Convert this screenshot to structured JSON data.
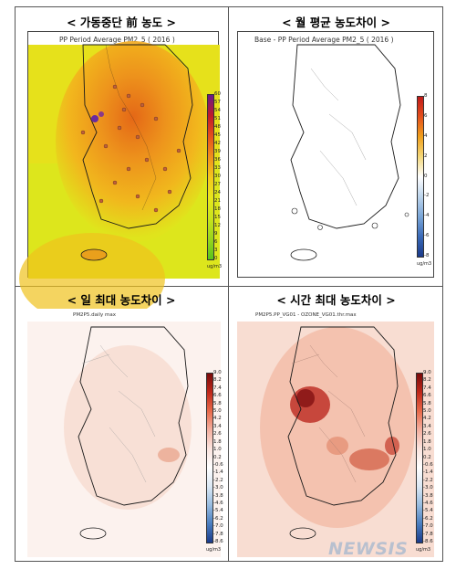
{
  "panels": [
    {
      "title": "< 가동중단 前 농도 >",
      "subtitle": "PP Period Average PM2_5 ( 2016 )",
      "corner": "",
      "ticks": [
        "60",
        "57",
        "54",
        "51",
        "48",
        "45",
        "42",
        "39",
        "36",
        "33",
        "30",
        "27",
        "24",
        "21",
        "18",
        "15",
        "12",
        "9",
        "6",
        "3",
        "0"
      ],
      "unit": "ug/m3"
    },
    {
      "title": "< 월 평균 농도차이 >",
      "subtitle": "Base - PP Period Average PM2_5 ( 2016 )",
      "corner": "",
      "ticks": [
        "8",
        "6",
        "4",
        "2",
        "0",
        "-2",
        "-4",
        "-6",
        "-8"
      ],
      "unit": "ug/m3"
    },
    {
      "title": "< 일 최대 농도차이 >",
      "subtitle": "PM2P5.daily max",
      "corner": "",
      "ticks": [
        "9.0",
        "8.2",
        "7.4",
        "6.6",
        "5.8",
        "5.0",
        "4.2",
        "3.4",
        "2.6",
        "1.8",
        "1.0",
        "0.2",
        "-0.6",
        "-1.4",
        "-2.2",
        "-3.0",
        "-3.8",
        "-4.6",
        "-5.4",
        "-6.2",
        "-7.0",
        "-7.8",
        "-8.6"
      ],
      "unit": "ug/m3"
    },
    {
      "title": "< 시간 최대 농도차이 >",
      "subtitle": "PM2P5.PP_VG01 - OZONE_VG01.thr.max",
      "corner": "",
      "ticks": [
        "9.0",
        "8.2",
        "7.4",
        "6.6",
        "5.8",
        "5.0",
        "4.2",
        "3.4",
        "2.6",
        "1.8",
        "1.0",
        "0.2",
        "-0.6",
        "-1.4",
        "-2.2",
        "-3.0",
        "-3.8",
        "-4.6",
        "-5.4",
        "-6.2",
        "-7.0",
        "-7.8",
        "-8.6"
      ],
      "unit": "ug/m3"
    }
  ],
  "watermark": "NEWSIS",
  "colors": {
    "fill_high": "#e8741a",
    "fill_mid": "#f4b81c",
    "fill_low": "#d9ea1c",
    "diff_pos": "#c0392b",
    "diff_neg": "#2e5aa8",
    "border": "#000000"
  }
}
